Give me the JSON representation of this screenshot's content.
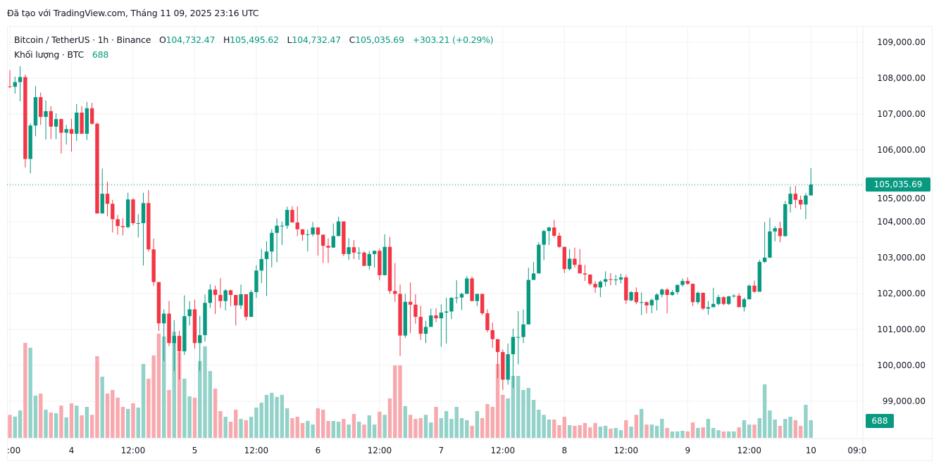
{
  "credit": "Đã tạo với TradingView.com, Tháng 11 09, 2025 23:16 UTC",
  "legend": {
    "symbol": "Bitcoin / TetherUS · 1h · Binance",
    "open_label": "O",
    "open": "104,732.47",
    "high_label": "H",
    "high": "105,495.62",
    "low_label": "L",
    "low": "104,732.47",
    "close_label": "C",
    "close": "105,035.69",
    "change": "+303.21 (+0.29%)",
    "volume_label": "Khối lượng · BTC",
    "volume": "688"
  },
  "colors": {
    "up": "#089981",
    "down": "#f23645",
    "up_volume": "#92d2c8",
    "down_volume": "#f7a9ae",
    "grid": "#f0f1f3"
  },
  "chart_data": {
    "type": "candlestick",
    "interval": "1h",
    "ylim": [
      98200,
      109500
    ],
    "grid": true,
    "price_ticks": [
      "109,000.00",
      "108,000.00",
      "107,000.00",
      "106,000.00",
      "105,000.00",
      "104,000.00",
      "103,000.00",
      "102,000.00",
      "101,000.00",
      "100,000.00",
      "99,000.00"
    ],
    "price_tick_values": [
      109000,
      108000,
      107000,
      106000,
      105000,
      104000,
      103000,
      102000,
      101000,
      100000,
      99000
    ],
    "time_ticks": [
      ":00",
      "4",
      "12:00",
      "5",
      "12:00",
      "6",
      "12:00",
      "7",
      "12:00",
      "8",
      "12:00",
      "9",
      "12:00",
      "10",
      "09:0"
    ],
    "time_tick_hours": [
      1,
      13,
      25,
      37,
      49,
      61,
      73,
      85,
      97,
      109,
      121,
      133,
      145,
      157,
      166
    ],
    "last_price_label": "105,035.69",
    "last_price": 105035.69,
    "last_volume_label": "688",
    "ohlc_columns": [
      "open",
      "high",
      "low",
      "close"
    ],
    "ohlc": [
      [
        107770,
        108220,
        107730,
        107760
      ],
      [
        107760,
        108040,
        107570,
        107890
      ],
      [
        107890,
        108330,
        107350,
        108030
      ],
      [
        108030,
        108100,
        105510,
        105750
      ],
      [
        105750,
        106740,
        105350,
        106680
      ],
      [
        106680,
        107780,
        106380,
        107470
      ],
      [
        107470,
        107600,
        106700,
        106920
      ],
      [
        106920,
        107380,
        106290,
        107080
      ],
      [
        107080,
        107220,
        106300,
        106650
      ],
      [
        106650,
        107020,
        106300,
        106860
      ],
      [
        106860,
        106870,
        105900,
        106480
      ],
      [
        106480,
        106700,
        106150,
        106580
      ],
      [
        106580,
        106870,
        105950,
        106450
      ],
      [
        106450,
        107280,
        106250,
        107040
      ],
      [
        107040,
        107220,
        106450,
        106450
      ],
      [
        106450,
        107340,
        106280,
        107160
      ],
      [
        107160,
        107310,
        106700,
        106730
      ],
      [
        106730,
        106760,
        104230,
        104230
      ],
      [
        104230,
        105480,
        104230,
        104780
      ],
      [
        104780,
        105120,
        104150,
        104500
      ],
      [
        104500,
        104610,
        103700,
        104070
      ],
      [
        104070,
        104190,
        103640,
        103880
      ],
      [
        103880,
        104100,
        103620,
        103850
      ],
      [
        103850,
        104810,
        103820,
        104620
      ],
      [
        104620,
        104660,
        103900,
        103960
      ],
      [
        103960,
        104210,
        103560,
        103960
      ],
      [
        103960,
        104810,
        102780,
        104520
      ],
      [
        104520,
        104880,
        103170,
        103230
      ],
      [
        103230,
        103530,
        102210,
        102320
      ],
      [
        102320,
        102320,
        100960,
        101170
      ],
      [
        101170,
        101560,
        100120,
        101440
      ],
      [
        101440,
        101790,
        100530,
        100620
      ],
      [
        100620,
        101260,
        99840,
        100820
      ],
      [
        100820,
        100960,
        99610,
        100390
      ],
      [
        100390,
        101950,
        100290,
        101370
      ],
      [
        101370,
        101790,
        101110,
        101560
      ],
      [
        101560,
        101830,
        100460,
        100620
      ],
      [
        100620,
        101380,
        99840,
        100840
      ],
      [
        100840,
        101970,
        100660,
        101740
      ],
      [
        101740,
        102260,
        101600,
        102110
      ],
      [
        102110,
        102220,
        101430,
        101960
      ],
      [
        101960,
        102430,
        101600,
        101790
      ],
      [
        101790,
        102120,
        101530,
        102090
      ],
      [
        102090,
        102110,
        101650,
        101960
      ],
      [
        101960,
        101960,
        101110,
        101670
      ],
      [
        101670,
        102250,
        101570,
        101980
      ],
      [
        101980,
        101980,
        101250,
        101350
      ],
      [
        101350,
        102100,
        101350,
        102040
      ],
      [
        102040,
        102790,
        101880,
        102640
      ],
      [
        102640,
        103240,
        102290,
        102960
      ],
      [
        102960,
        103460,
        101930,
        103170
      ],
      [
        103170,
        103790,
        102730,
        103690
      ],
      [
        103690,
        104090,
        102870,
        103890
      ],
      [
        103890,
        104000,
        103350,
        103890
      ],
      [
        103890,
        104420,
        103800,
        104330
      ],
      [
        104330,
        104430,
        103980,
        103980
      ],
      [
        103980,
        104430,
        103600,
        103790
      ],
      [
        103790,
        103790,
        103470,
        103640
      ],
      [
        103640,
        103780,
        103170,
        103650
      ],
      [
        103650,
        103990,
        103590,
        103840
      ],
      [
        103840,
        103850,
        103060,
        103640
      ],
      [
        103640,
        103640,
        102850,
        103330
      ],
      [
        103330,
        103540,
        102850,
        103280
      ],
      [
        103280,
        103950,
        103280,
        103600
      ],
      [
        103600,
        104140,
        103600,
        104010
      ],
      [
        104010,
        104010,
        103040,
        103100
      ],
      [
        103100,
        103540,
        102940,
        103290
      ],
      [
        103290,
        103490,
        102960,
        103140
      ],
      [
        103140,
        103290,
        102940,
        103140
      ],
      [
        103140,
        103180,
        102770,
        102770
      ],
      [
        102770,
        103190,
        102660,
        103100
      ],
      [
        103100,
        103200,
        102720,
        103190
      ],
      [
        103190,
        103250,
        102370,
        102510
      ],
      [
        102510,
        103650,
        102510,
        103300
      ],
      [
        103300,
        103580,
        101990,
        102070
      ],
      [
        102070,
        102850,
        101770,
        101990
      ],
      [
        101990,
        102250,
        100260,
        100830
      ],
      [
        100830,
        101990,
        100760,
        101770
      ],
      [
        101770,
        102310,
        100900,
        101690
      ],
      [
        101690,
        101980,
        101160,
        101350
      ],
      [
        101350,
        101660,
        100710,
        100880
      ],
      [
        100880,
        101240,
        100620,
        101070
      ],
      [
        101070,
        101580,
        101070,
        101390
      ],
      [
        101390,
        101590,
        101200,
        101310
      ],
      [
        101310,
        101700,
        100520,
        101470
      ],
      [
        101470,
        101880,
        100610,
        101500
      ],
      [
        101500,
        101900,
        101290,
        101880
      ],
      [
        101880,
        102370,
        101730,
        101890
      ],
      [
        101890,
        102020,
        101540,
        101990
      ],
      [
        101990,
        102490,
        101990,
        102420
      ],
      [
        102420,
        102480,
        101790,
        101790
      ],
      [
        101790,
        101990,
        101650,
        101990
      ],
      [
        101990,
        101990,
        101400,
        101450
      ],
      [
        101450,
        101560,
        100920,
        100980
      ],
      [
        100980,
        101190,
        100490,
        100730
      ],
      [
        100730,
        100730,
        99640,
        100370
      ],
      [
        100370,
        100440,
        99310,
        99600
      ],
      [
        99600,
        100610,
        99460,
        100310
      ],
      [
        100310,
        101020,
        99370,
        100790
      ],
      [
        100790,
        101510,
        100030,
        100790
      ],
      [
        100790,
        101560,
        100620,
        101140
      ],
      [
        101140,
        102720,
        101140,
        102380
      ],
      [
        102380,
        102880,
        102380,
        102560
      ],
      [
        102560,
        103430,
        102560,
        103360
      ],
      [
        103360,
        103780,
        102930,
        103740
      ],
      [
        103740,
        103860,
        103350,
        103840
      ],
      [
        103840,
        104050,
        103560,
        103610
      ],
      [
        103610,
        103700,
        103270,
        103300
      ],
      [
        103300,
        103300,
        102570,
        102680
      ],
      [
        102680,
        103240,
        102640,
        102970
      ],
      [
        102970,
        103280,
        102720,
        102800
      ],
      [
        102800,
        103240,
        102560,
        102560
      ],
      [
        102560,
        102800,
        102350,
        102530
      ],
      [
        102530,
        102530,
        102220,
        102270
      ],
      [
        102270,
        102350,
        102020,
        102170
      ],
      [
        102170,
        102370,
        101900,
        102330
      ],
      [
        102330,
        102620,
        102200,
        102400
      ],
      [
        102400,
        102570,
        102230,
        102380
      ],
      [
        102380,
        102520,
        102230,
        102390
      ],
      [
        102390,
        102550,
        102280,
        102450
      ],
      [
        102450,
        102520,
        101710,
        101810
      ],
      [
        101810,
        102070,
        101780,
        102040
      ],
      [
        102040,
        102170,
        101700,
        101760
      ],
      [
        101760,
        102030,
        101400,
        101760
      ],
      [
        101760,
        101780,
        101450,
        101670
      ],
      [
        101670,
        101860,
        101450,
        101820
      ],
      [
        101820,
        102010,
        101530,
        101970
      ],
      [
        101970,
        102140,
        101890,
        102110
      ],
      [
        102110,
        102160,
        101450,
        101960
      ],
      [
        101960,
        102100,
        101940,
        102040
      ],
      [
        102040,
        102250,
        101970,
        102240
      ],
      [
        102240,
        102420,
        102190,
        102350
      ],
      [
        102350,
        102450,
        102250,
        102270
      ],
      [
        102270,
        102280,
        101650,
        101760
      ],
      [
        101760,
        102060,
        101700,
        102020
      ],
      [
        102020,
        102030,
        101540,
        101580
      ],
      [
        101580,
        101790,
        101410,
        101620
      ],
      [
        101620,
        102160,
        101620,
        101710
      ],
      [
        101710,
        101960,
        101670,
        101900
      ],
      [
        101900,
        101920,
        101670,
        101710
      ],
      [
        101710,
        101940,
        101680,
        101920
      ],
      [
        101920,
        101980,
        101880,
        101940
      ],
      [
        101940,
        102010,
        101620,
        101620
      ],
      [
        101620,
        101890,
        101500,
        101840
      ],
      [
        101840,
        102250,
        101840,
        102220
      ],
      [
        102220,
        102360,
        102020,
        102050
      ],
      [
        102050,
        102940,
        102050,
        102880
      ],
      [
        102880,
        103990,
        102850,
        103000
      ],
      [
        103000,
        104110,
        102990,
        103730
      ],
      [
        103730,
        103880,
        103450,
        103820
      ],
      [
        103820,
        104000,
        103430,
        103600
      ],
      [
        103600,
        104580,
        103580,
        104490
      ],
      [
        104490,
        104980,
        104260,
        104780
      ],
      [
        104780,
        105000,
        104380,
        104610
      ],
      [
        104610,
        104730,
        104340,
        104480
      ],
      [
        104480,
        104800,
        104070,
        104730
      ],
      [
        104732.47,
        105495.62,
        104732.47,
        105035.69
      ]
    ],
    "volume": [
      900,
      830,
      1070,
      3710,
      3520,
      1650,
      1730,
      1100,
      990,
      960,
      1260,
      800,
      1350,
      1260,
      880,
      1210,
      900,
      3190,
      2390,
      1730,
      1870,
      1570,
      1210,
      1130,
      1350,
      1180,
      2890,
      2310,
      3220,
      4070,
      3960,
      1870,
      4150,
      3350,
      2310,
      1620,
      1570,
      3000,
      3575,
      2610,
      1925,
      1045,
      825,
      630,
      1100,
      740,
      690,
      825,
      1180,
      1375,
      1680,
      1760,
      1600,
      1680,
      1155,
      770,
      825,
      580,
      660,
      520,
      1155,
      1100,
      660,
      660,
      630,
      740,
      520,
      935,
      630,
      520,
      880,
      520,
      1020,
      900,
      1540,
      2830,
      2830,
      1240,
      900,
      740,
      770,
      900,
      600,
      1210,
      770,
      1045,
      740,
      1210,
      770,
      690,
      470,
      1045,
      770,
      1320,
      1210,
      2890,
      1680,
      1540,
      2420,
      2420,
      1870,
      1950,
      1485,
      1100,
      900,
      715,
      715,
      495,
      825,
      495,
      470,
      495,
      580,
      410,
      580,
      440,
      470,
      360,
      385,
      300,
      690,
      440,
      900,
      1130,
      520,
      520,
      470,
      740,
      385,
      250,
      250,
      275,
      250,
      600,
      385,
      410,
      740,
      385,
      300,
      250,
      250,
      250,
      410,
      690,
      520,
      520,
      770,
      2090,
      1070,
      715,
      470,
      740,
      825,
      690,
      470,
      1290,
      688
    ]
  }
}
